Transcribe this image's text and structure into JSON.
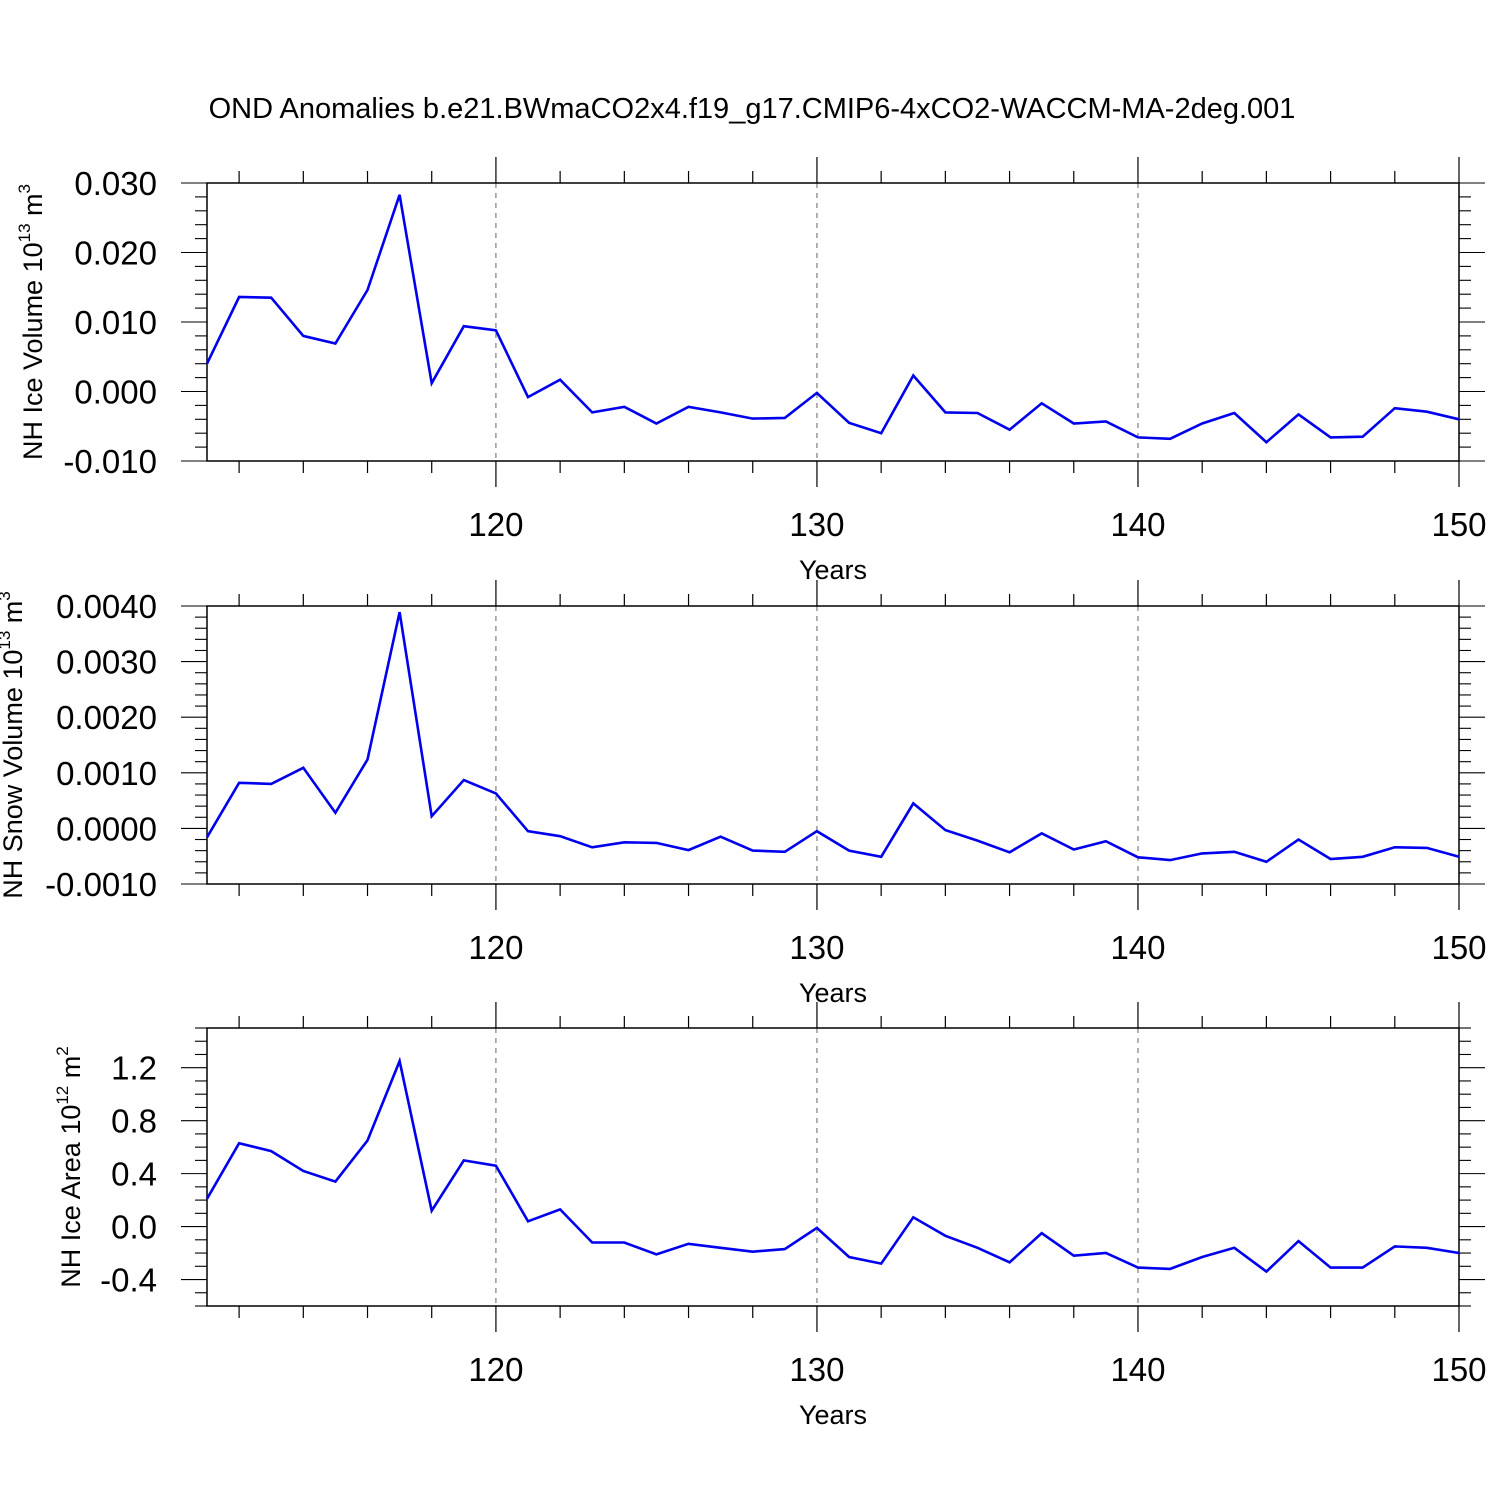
{
  "figure": {
    "title": "OND Anomalies b.e21.BWmaCO2x4.f19_g17.CMIP6-4xCO2-WACCM-MA-2deg.001"
  },
  "chart_data": [
    {
      "type": "line",
      "title": "",
      "xlabel": "Years",
      "ylabel": "NH Ice Volume 10",
      "ylabel_exp": "13",
      "ylabel_unit": " m",
      "ylabel_unit_exp": "3",
      "xlim": [
        111,
        150
      ],
      "ylim": [
        -0.01,
        0.03
      ],
      "xticks": [
        120,
        130,
        140,
        150
      ],
      "xtick_labels": [
        "120",
        "130",
        "140",
        "150"
      ],
      "yticks": [
        -0.01,
        0.0,
        0.01,
        0.02,
        0.03
      ],
      "ytick_labels": [
        "-0.010",
        "0.000",
        "0.010",
        "0.020",
        "0.030"
      ],
      "y_minor_step": 0.002,
      "grid": "vertical dashed at major x ticks",
      "line_color": "#0000ee",
      "series": [
        {
          "x": [
            111,
            112,
            113,
            114,
            115,
            116,
            117,
            118,
            119,
            120,
            121,
            122,
            123,
            124,
            125,
            126,
            127,
            128,
            129,
            130,
            131,
            132,
            133,
            134,
            135,
            136,
            137,
            138,
            139,
            140,
            141,
            142,
            143,
            144,
            145,
            146,
            147,
            148,
            149,
            150
          ],
          "values": [
            0.004,
            0.0136,
            0.0135,
            0.008,
            0.0069,
            0.0146,
            0.0283,
            0.0012,
            0.0094,
            0.0088,
            -0.0008,
            0.0017,
            -0.003,
            -0.0022,
            -0.0046,
            -0.0022,
            -0.003,
            -0.0039,
            -0.0038,
            -0.0002,
            -0.0045,
            -0.006,
            0.0023,
            -0.003,
            -0.0031,
            -0.0055,
            -0.0017,
            -0.0046,
            -0.0043,
            -0.0066,
            -0.0068,
            -0.0046,
            -0.0031,
            -0.0073,
            -0.0033,
            -0.0066,
            -0.0065,
            -0.0024,
            -0.0029,
            -0.004
          ]
        }
      ]
    },
    {
      "type": "line",
      "title": "",
      "xlabel": "Years",
      "ylabel": "NH Snow Volume 10",
      "ylabel_exp": "13",
      "ylabel_unit": " m",
      "ylabel_unit_exp": "3",
      "xlim": [
        111,
        150
      ],
      "ylim": [
        -0.001,
        0.004
      ],
      "xticks": [
        120,
        130,
        140,
        150
      ],
      "xtick_labels": [
        "120",
        "130",
        "140",
        "150"
      ],
      "yticks": [
        -0.001,
        0.0,
        0.001,
        0.002,
        0.003,
        0.004
      ],
      "ytick_labels": [
        "-0.0010",
        "0.0000",
        "0.0010",
        "0.0020",
        "0.0030",
        "0.0040"
      ],
      "y_minor_step": 0.0002,
      "grid": "vertical dashed at major x ticks",
      "line_color": "#0000ee",
      "series": [
        {
          "x": [
            111,
            112,
            113,
            114,
            115,
            116,
            117,
            118,
            119,
            120,
            121,
            122,
            123,
            124,
            125,
            126,
            127,
            128,
            129,
            130,
            131,
            132,
            133,
            134,
            135,
            136,
            137,
            138,
            139,
            140,
            141,
            142,
            143,
            144,
            145,
            146,
            147,
            148,
            149,
            150
          ],
          "values": [
            -0.00016,
            0.00082,
            0.0008,
            0.00109,
            0.00028,
            0.00124,
            0.00389,
            0.00022,
            0.00087,
            0.00063,
            -5e-05,
            -0.00014,
            -0.00034,
            -0.00025,
            -0.00026,
            -0.00039,
            -0.00015,
            -0.0004,
            -0.00042,
            -5e-05,
            -0.0004,
            -0.00051,
            0.00045,
            -3e-05,
            -0.00022,
            -0.00043,
            -9e-05,
            -0.00038,
            -0.00023,
            -0.00052,
            -0.00057,
            -0.00045,
            -0.00042,
            -0.0006,
            -0.0002,
            -0.00055,
            -0.00051,
            -0.00034,
            -0.00035,
            -0.00051
          ]
        }
      ]
    },
    {
      "type": "line",
      "title": "",
      "xlabel": "Years",
      "ylabel": "NH Ice Area 10",
      "ylabel_exp": "12",
      "ylabel_unit": " m",
      "ylabel_unit_exp": "2",
      "xlim": [
        111,
        150
      ],
      "ylim": [
        -0.6,
        1.5
      ],
      "xticks": [
        120,
        130,
        140,
        150
      ],
      "xtick_labels": [
        "120",
        "130",
        "140",
        "150"
      ],
      "yticks": [
        -0.4,
        0.0,
        0.4,
        0.8,
        1.2
      ],
      "ytick_labels": [
        "-0.4",
        "0.0",
        "0.4",
        "0.8",
        "1.2"
      ],
      "y_minor_step": 0.1,
      "grid": "vertical dashed at major x ticks",
      "line_color": "#0000ee",
      "series": [
        {
          "x": [
            111,
            112,
            113,
            114,
            115,
            116,
            117,
            118,
            119,
            120,
            121,
            122,
            123,
            124,
            125,
            126,
            127,
            128,
            129,
            130,
            131,
            132,
            133,
            134,
            135,
            136,
            137,
            138,
            139,
            140,
            141,
            142,
            143,
            144,
            145,
            146,
            147,
            148,
            149,
            150
          ],
          "values": [
            0.21,
            0.63,
            0.57,
            0.42,
            0.34,
            0.65,
            1.25,
            0.12,
            0.5,
            0.46,
            0.04,
            0.13,
            -0.12,
            -0.12,
            -0.21,
            -0.13,
            -0.16,
            -0.19,
            -0.17,
            -0.01,
            -0.23,
            -0.28,
            0.07,
            -0.07,
            -0.16,
            -0.27,
            -0.05,
            -0.22,
            -0.2,
            -0.31,
            -0.32,
            -0.23,
            -0.16,
            -0.34,
            -0.11,
            -0.31,
            -0.31,
            -0.15,
            -0.16,
            -0.2
          ]
        }
      ]
    }
  ]
}
